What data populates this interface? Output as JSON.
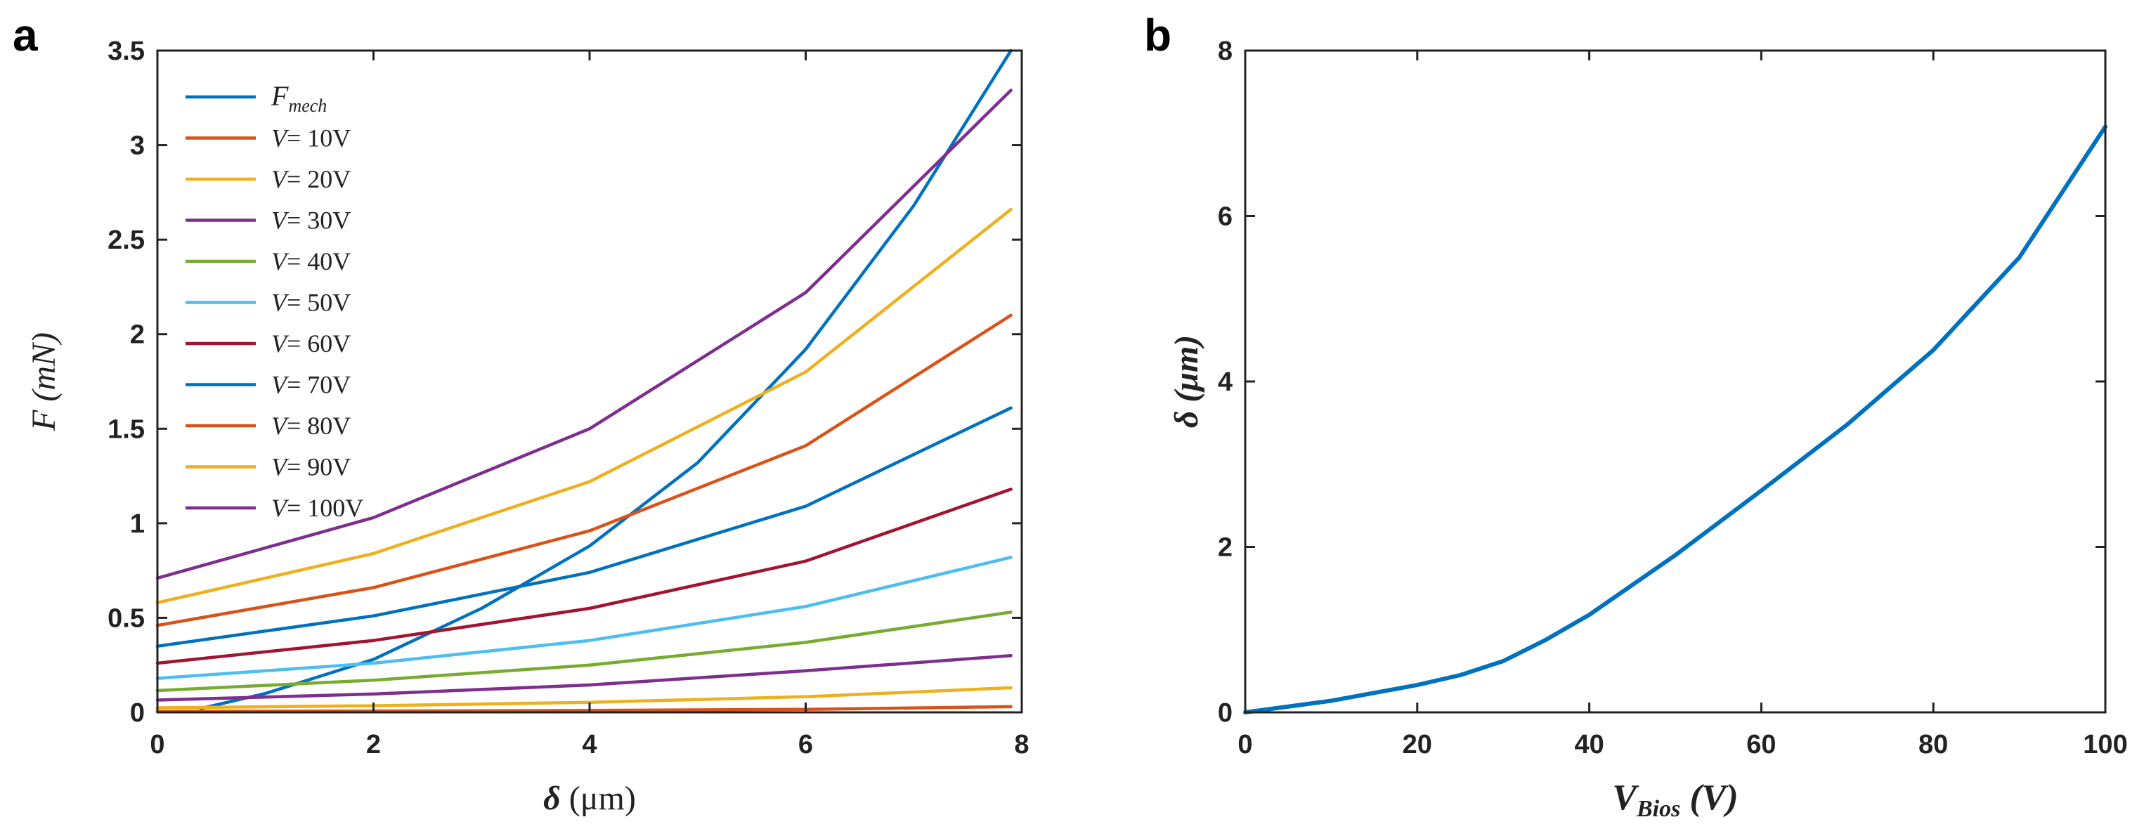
{
  "panels": {
    "a": {
      "letter": "a"
    },
    "b": {
      "letter": "b"
    }
  },
  "chart_data": [
    {
      "type": "line",
      "panel": "a",
      "xlabel": "δ (μm)",
      "ylabel": "F (mN)",
      "xlim": [
        0,
        8
      ],
      "ylim": [
        0,
        3.5
      ],
      "xticks": [
        0,
        2,
        4,
        6,
        8
      ],
      "yticks": [
        0,
        0.5,
        1,
        1.5,
        2,
        2.5,
        3,
        3.5
      ],
      "grid": false,
      "legend": "top-left",
      "series": [
        {
          "name": "F_mech",
          "label_base": "F",
          "label_sub": "mech",
          "color": "#0072BD",
          "x": [
            0.4,
            1,
            2,
            3,
            4,
            5,
            6,
            7,
            7.9
          ],
          "y": [
            0.02,
            0.1,
            0.28,
            0.55,
            0.88,
            1.32,
            1.92,
            2.68,
            3.5
          ]
        },
        {
          "name": "V= 10V",
          "label": "V= 10V",
          "color": "#D95319",
          "x": [
            0,
            2,
            4,
            6,
            7.9
          ],
          "y": [
            0.005,
            0.007,
            0.01,
            0.016,
            0.03
          ]
        },
        {
          "name": "V= 20V",
          "label": "V= 20V",
          "color": "#EDB120",
          "x": [
            0,
            2,
            4,
            6,
            7.9
          ],
          "y": [
            0.024,
            0.035,
            0.053,
            0.083,
            0.13
          ]
        },
        {
          "name": "V= 30V",
          "label": "V= 30V",
          "color": "#7E2F8E",
          "x": [
            0,
            2,
            4,
            6,
            7.9
          ],
          "y": [
            0.065,
            0.097,
            0.145,
            0.22,
            0.3
          ]
        },
        {
          "name": "V= 40V",
          "label": "V= 40V",
          "color": "#77AC30",
          "x": [
            0,
            2,
            4,
            6,
            7.9
          ],
          "y": [
            0.115,
            0.17,
            0.25,
            0.37,
            0.53
          ]
        },
        {
          "name": "V= 50V",
          "label": "V= 50V",
          "color": "#4DBEEE",
          "x": [
            0,
            2,
            4,
            6,
            7.9
          ],
          "y": [
            0.18,
            0.26,
            0.38,
            0.56,
            0.82
          ]
        },
        {
          "name": "V= 60V",
          "label": "V= 60V",
          "color": "#A2142F",
          "x": [
            0,
            2,
            4,
            6,
            7.9
          ],
          "y": [
            0.26,
            0.38,
            0.55,
            0.8,
            1.18
          ]
        },
        {
          "name": "V= 70V",
          "label": "V= 70V",
          "color": "#0072BD",
          "x": [
            0,
            2,
            4,
            6,
            7.9
          ],
          "y": [
            0.35,
            0.51,
            0.74,
            1.09,
            1.61
          ]
        },
        {
          "name": "V= 80V",
          "label": "V= 80V",
          "color": "#D95319",
          "x": [
            0,
            2,
            4,
            6,
            7.9
          ],
          "y": [
            0.46,
            0.66,
            0.96,
            1.41,
            2.1
          ]
        },
        {
          "name": "V= 90V",
          "label": "V= 90V",
          "color": "#EDB120",
          "x": [
            0,
            2,
            4,
            6,
            7.9
          ],
          "y": [
            0.58,
            0.84,
            1.22,
            1.8,
            2.66
          ]
        },
        {
          "name": "V= 100V",
          "label": "V= 100V",
          "color": "#7E2F8E",
          "x": [
            0,
            2,
            4,
            6,
            7.9
          ],
          "y": [
            0.71,
            1.03,
            1.5,
            2.22,
            3.29
          ]
        }
      ]
    },
    {
      "type": "line",
      "panel": "b",
      "xlabel": "V_Bios (V)",
      "xlabel_base": "V",
      "xlabel_sub": "Bios",
      "xlabel_unit": "(V)",
      "ylabel": "δ (μm)",
      "xlim": [
        0,
        100
      ],
      "ylim": [
        0,
        8
      ],
      "xticks": [
        0,
        20,
        40,
        60,
        80,
        100
      ],
      "yticks": [
        0,
        2,
        4,
        6,
        8
      ],
      "grid": false,
      "series": [
        {
          "color": "#0072BD",
          "x": [
            0,
            10,
            20,
            25,
            30,
            35,
            40,
            50,
            60,
            70,
            80,
            90,
            100
          ],
          "y": [
            0,
            0.14,
            0.33,
            0.45,
            0.62,
            0.88,
            1.18,
            1.9,
            2.68,
            3.48,
            4.38,
            5.5,
            7.08
          ]
        }
      ]
    }
  ]
}
